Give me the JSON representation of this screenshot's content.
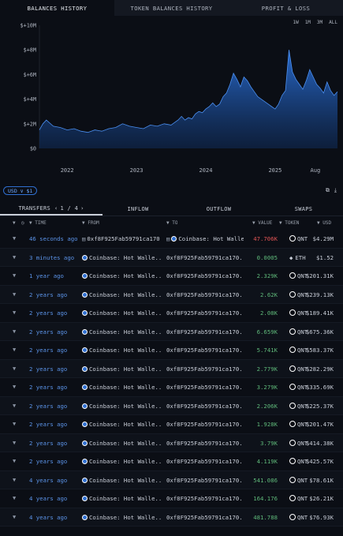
{
  "tabs": [
    {
      "label": "BALANCES HISTORY",
      "active": true
    },
    {
      "label": "TOKEN BALANCES HISTORY",
      "active": false
    },
    {
      "label": "PROFIT & LOSS",
      "active": false
    }
  ],
  "range_buttons": [
    "1W",
    "1M",
    "3M",
    "ALL"
  ],
  "chart_data": {
    "type": "area",
    "y_ticks": [
      "$+10M",
      "$+8M",
      "$+6M",
      "$+4M",
      "$+2M",
      "$0"
    ],
    "x_ticks": [
      "2022",
      "2023",
      "2024",
      "2025",
      "Aug"
    ],
    "ylim": [
      0,
      10
    ],
    "xlim": [
      2021.6,
      2025.9
    ],
    "series": [
      {
        "x": [
          2021.6,
          2021.65,
          2021.7,
          2021.8,
          2021.9,
          2022.0,
          2022.1,
          2022.2,
          2022.3,
          2022.4,
          2022.5,
          2022.6,
          2022.7,
          2022.8,
          2022.9,
          2023.0,
          2023.1,
          2023.2,
          2023.3,
          2023.4,
          2023.5,
          2023.55,
          2023.6,
          2023.65,
          2023.7,
          2023.75,
          2023.8,
          2023.85,
          2023.9,
          2023.95,
          2024.0,
          2024.05,
          2024.1,
          2024.15,
          2024.2,
          2024.25,
          2024.3,
          2024.35,
          2024.4,
          2024.45,
          2024.5,
          2024.55,
          2024.6,
          2024.65,
          2024.7,
          2024.75,
          2024.8,
          2024.85,
          2024.9,
          2024.95,
          2025.0,
          2025.05,
          2025.1,
          2025.15,
          2025.2,
          2025.25,
          2025.3,
          2025.35,
          2025.4,
          2025.45,
          2025.5,
          2025.55,
          2025.6,
          2025.65,
          2025.7,
          2025.75,
          2025.8,
          2025.85,
          2025.9
        ],
        "y": [
          1.5,
          2.0,
          2.3,
          1.8,
          1.7,
          1.5,
          1.6,
          1.4,
          1.3,
          1.5,
          1.4,
          1.6,
          1.7,
          2.0,
          1.8,
          1.7,
          1.6,
          1.9,
          1.8,
          2.0,
          1.9,
          2.1,
          2.3,
          2.6,
          2.3,
          2.5,
          2.4,
          2.8,
          3.0,
          2.9,
          3.2,
          3.4,
          3.7,
          3.4,
          3.6,
          4.2,
          4.5,
          5.2,
          6.1,
          5.6,
          5.0,
          5.8,
          5.5,
          5.0,
          4.6,
          4.2,
          4.0,
          3.8,
          3.6,
          3.4,
          3.2,
          3.6,
          4.3,
          4.7,
          8.0,
          6.2,
          5.6,
          5.2,
          4.8,
          5.5,
          6.4,
          5.8,
          5.2,
          4.9,
          4.5,
          5.4,
          4.7,
          4.3,
          4.6
        ]
      }
    ]
  },
  "controls": {
    "usd_label": "USD ∨ $1"
  },
  "ttabs": {
    "transfers": "TRANSFERS",
    "page": "1 / 4",
    "inflow": "INFLOW",
    "outflow": "OUTFLOW",
    "swaps": "SWAPS"
  },
  "table": {
    "headers": {
      "time": "TIME",
      "from": "FROM",
      "to": "TO",
      "value": "VALUE",
      "token": "TOKEN",
      "usd": "USD"
    },
    "rows": [
      {
        "time": "46 seconds ago",
        "from": "0xf8F925Fab59791ca170...",
        "from_cb": false,
        "to": "Coinbase: Hot Walle...",
        "to_cb": true,
        "value": "47.706K",
        "value_color": "red",
        "token": "QNT",
        "usd": "$4.29M"
      },
      {
        "time": "3 minutes ago",
        "from": "Coinbase: Hot Walle...",
        "from_cb": true,
        "to": "0xf8F925Fab59791ca170...",
        "to_cb": false,
        "value": "0.0005",
        "value_color": "green",
        "token": "ETH",
        "usd": "$1.52"
      },
      {
        "time": "1 year ago",
        "from": "Coinbase: Hot Walle...",
        "from_cb": true,
        "to": "0xf8F925Fab59791ca170...",
        "to_cb": false,
        "value": "2.329K",
        "value_color": "green",
        "token": "QNT",
        "usd": "$201.31K"
      },
      {
        "time": "2 years ago",
        "from": "Coinbase: Hot Walle...",
        "from_cb": true,
        "to": "0xf8F925Fab59791ca170...",
        "to_cb": false,
        "value": "2.62K",
        "value_color": "green",
        "token": "QNT",
        "usd": "$239.13K"
      },
      {
        "time": "2 years ago",
        "from": "Coinbase: Hot Walle...",
        "from_cb": true,
        "to": "0xf8F925Fab59791ca170...",
        "to_cb": false,
        "value": "2.08K",
        "value_color": "green",
        "token": "QNT",
        "usd": "$189.41K"
      },
      {
        "time": "2 years ago",
        "from": "Coinbase: Hot Walle...",
        "from_cb": true,
        "to": "0xf8F925Fab59791ca170...",
        "to_cb": false,
        "value": "6.659K",
        "value_color": "green",
        "token": "QNT",
        "usd": "$675.36K"
      },
      {
        "time": "2 years ago",
        "from": "Coinbase: Hot Walle...",
        "from_cb": true,
        "to": "0xf8F925Fab59791ca170...",
        "to_cb": false,
        "value": "5.741K",
        "value_color": "green",
        "token": "QNT",
        "usd": "$583.37K"
      },
      {
        "time": "2 years ago",
        "from": "Coinbase: Hot Walle...",
        "from_cb": true,
        "to": "0xf8F925Fab59791ca170...",
        "to_cb": false,
        "value": "2.779K",
        "value_color": "green",
        "token": "QNT",
        "usd": "$282.29K"
      },
      {
        "time": "2 years ago",
        "from": "Coinbase: Hot Walle...",
        "from_cb": true,
        "to": "0xf8F925Fab59791ca170...",
        "to_cb": false,
        "value": "3.279K",
        "value_color": "green",
        "token": "QNT",
        "usd": "$335.69K"
      },
      {
        "time": "2 years ago",
        "from": "Coinbase: Hot Walle...",
        "from_cb": true,
        "to": "0xf8F925Fab59791ca170...",
        "to_cb": false,
        "value": "2.206K",
        "value_color": "green",
        "token": "QNT",
        "usd": "$225.37K"
      },
      {
        "time": "2 years ago",
        "from": "Coinbase: Hot Walle...",
        "from_cb": true,
        "to": "0xf8F925Fab59791ca170...",
        "to_cb": false,
        "value": "1.928K",
        "value_color": "green",
        "token": "QNT",
        "usd": "$201.47K"
      },
      {
        "time": "2 years ago",
        "from": "Coinbase: Hot Walle...",
        "from_cb": true,
        "to": "0xf8F925Fab59791ca170...",
        "to_cb": false,
        "value": "3.79K",
        "value_color": "green",
        "token": "QNT",
        "usd": "$414.38K"
      },
      {
        "time": "2 years ago",
        "from": "Coinbase: Hot Walle...",
        "from_cb": true,
        "to": "0xf8F925Fab59791ca170...",
        "to_cb": false,
        "value": "4.119K",
        "value_color": "green",
        "token": "QNT",
        "usd": "$425.57K"
      },
      {
        "time": "4 years ago",
        "from": "Coinbase: Hot Walle...",
        "from_cb": true,
        "to": "0xf8F925Fab59791ca170...",
        "to_cb": false,
        "value": "541.086",
        "value_color": "green",
        "token": "QNT",
        "usd": "$78.61K"
      },
      {
        "time": "4 years ago",
        "from": "Coinbase: Hot Walle...",
        "from_cb": true,
        "to": "0xf8F925Fab59791ca170...",
        "to_cb": false,
        "value": "164.176",
        "value_color": "green",
        "token": "QNT",
        "usd": "$26.21K"
      },
      {
        "time": "4 years ago",
        "from": "Coinbase: Hot Walle...",
        "from_cb": true,
        "to": "0xf8F925Fab59791ca170...",
        "to_cb": false,
        "value": "481.788",
        "value_color": "green",
        "token": "QNT",
        "usd": "$76.93K"
      }
    ]
  }
}
